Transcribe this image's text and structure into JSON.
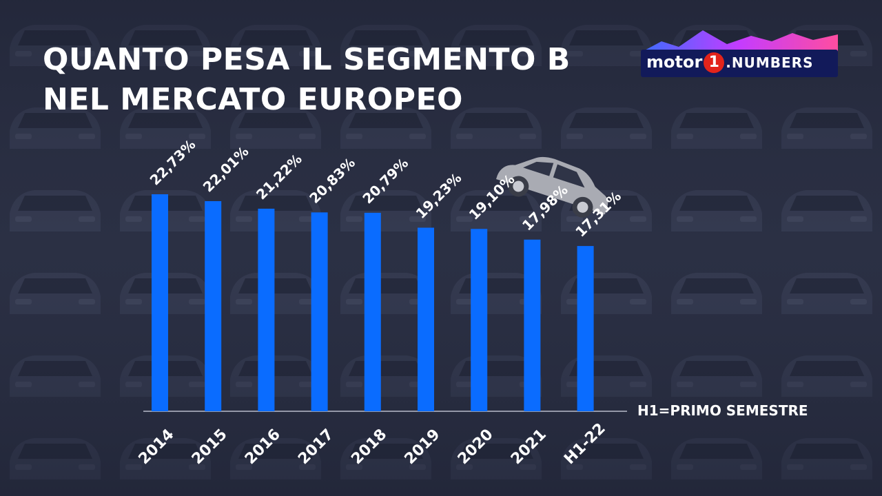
{
  "header": {
    "title_line1": "QUANTO PESA IL SEGMENTO B",
    "title_line2": "NEL MERCATO EUROPEO"
  },
  "logo": {
    "part1": "motor",
    "part2": "1",
    "part3": ".NUMBERS",
    "icon": "mountain-wave-logo"
  },
  "note": "H1=PRIMO SEMESTRE",
  "colors": {
    "bar": "#0a6cff",
    "background": "#2b3044",
    "text": "#ffffff"
  },
  "chart_data": {
    "type": "bar",
    "categories": [
      "2014",
      "2015",
      "2016",
      "2017",
      "2018",
      "2019",
      "2020",
      "2021",
      "H1-22"
    ],
    "values": [
      22.73,
      22.01,
      21.22,
      20.83,
      20.79,
      19.23,
      19.1,
      17.98,
      17.31
    ],
    "value_labels": [
      "22,73%",
      "22,01%",
      "21,22%",
      "20,83%",
      "20,79%",
      "19,23%",
      "19,10%",
      "17,98%",
      "17,31%"
    ],
    "title": "QUANTO PESA IL SEGMENTO B NEL MERCATO EUROPEO",
    "xlabel": "",
    "ylabel": "",
    "grid": false,
    "legend": "none"
  }
}
